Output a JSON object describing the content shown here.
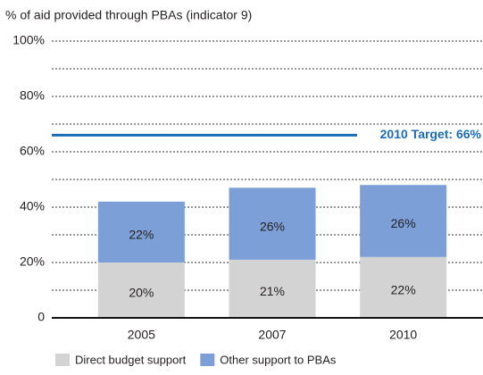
{
  "chart_data": {
    "type": "stacked_bar",
    "title": "% of aid provided through PBAs (indicator 9)",
    "categories": [
      "2005",
      "2007",
      "2010"
    ],
    "series": [
      {
        "name": "Direct budget support",
        "color": "#d3d3d3",
        "values": [
          20,
          21,
          22
        ],
        "value_labels": [
          "20%",
          "21%",
          "22%"
        ]
      },
      {
        "name": "Other support to PBAs",
        "color": "#7b9fd6",
        "values": [
          22,
          26,
          26
        ],
        "value_labels": [
          "22%",
          "26%",
          "26%"
        ]
      }
    ],
    "ylim": [
      0,
      100
    ],
    "yticks": [
      0,
      {
        "value": 20,
        "label": "20%"
      },
      {
        "value": 40,
        "label": "40%"
      },
      {
        "value": 60,
        "label": "60%"
      },
      {
        "value": 80,
        "label": "80%"
      },
      {
        "value": 100,
        "label": "100%"
      }
    ],
    "minor_yticks": [
      10,
      30,
      50,
      70,
      90
    ],
    "grid": true,
    "target": {
      "value": 66,
      "label": "2010 Target: 66%",
      "color": "#1b6db8"
    },
    "legend": "bottom"
  }
}
